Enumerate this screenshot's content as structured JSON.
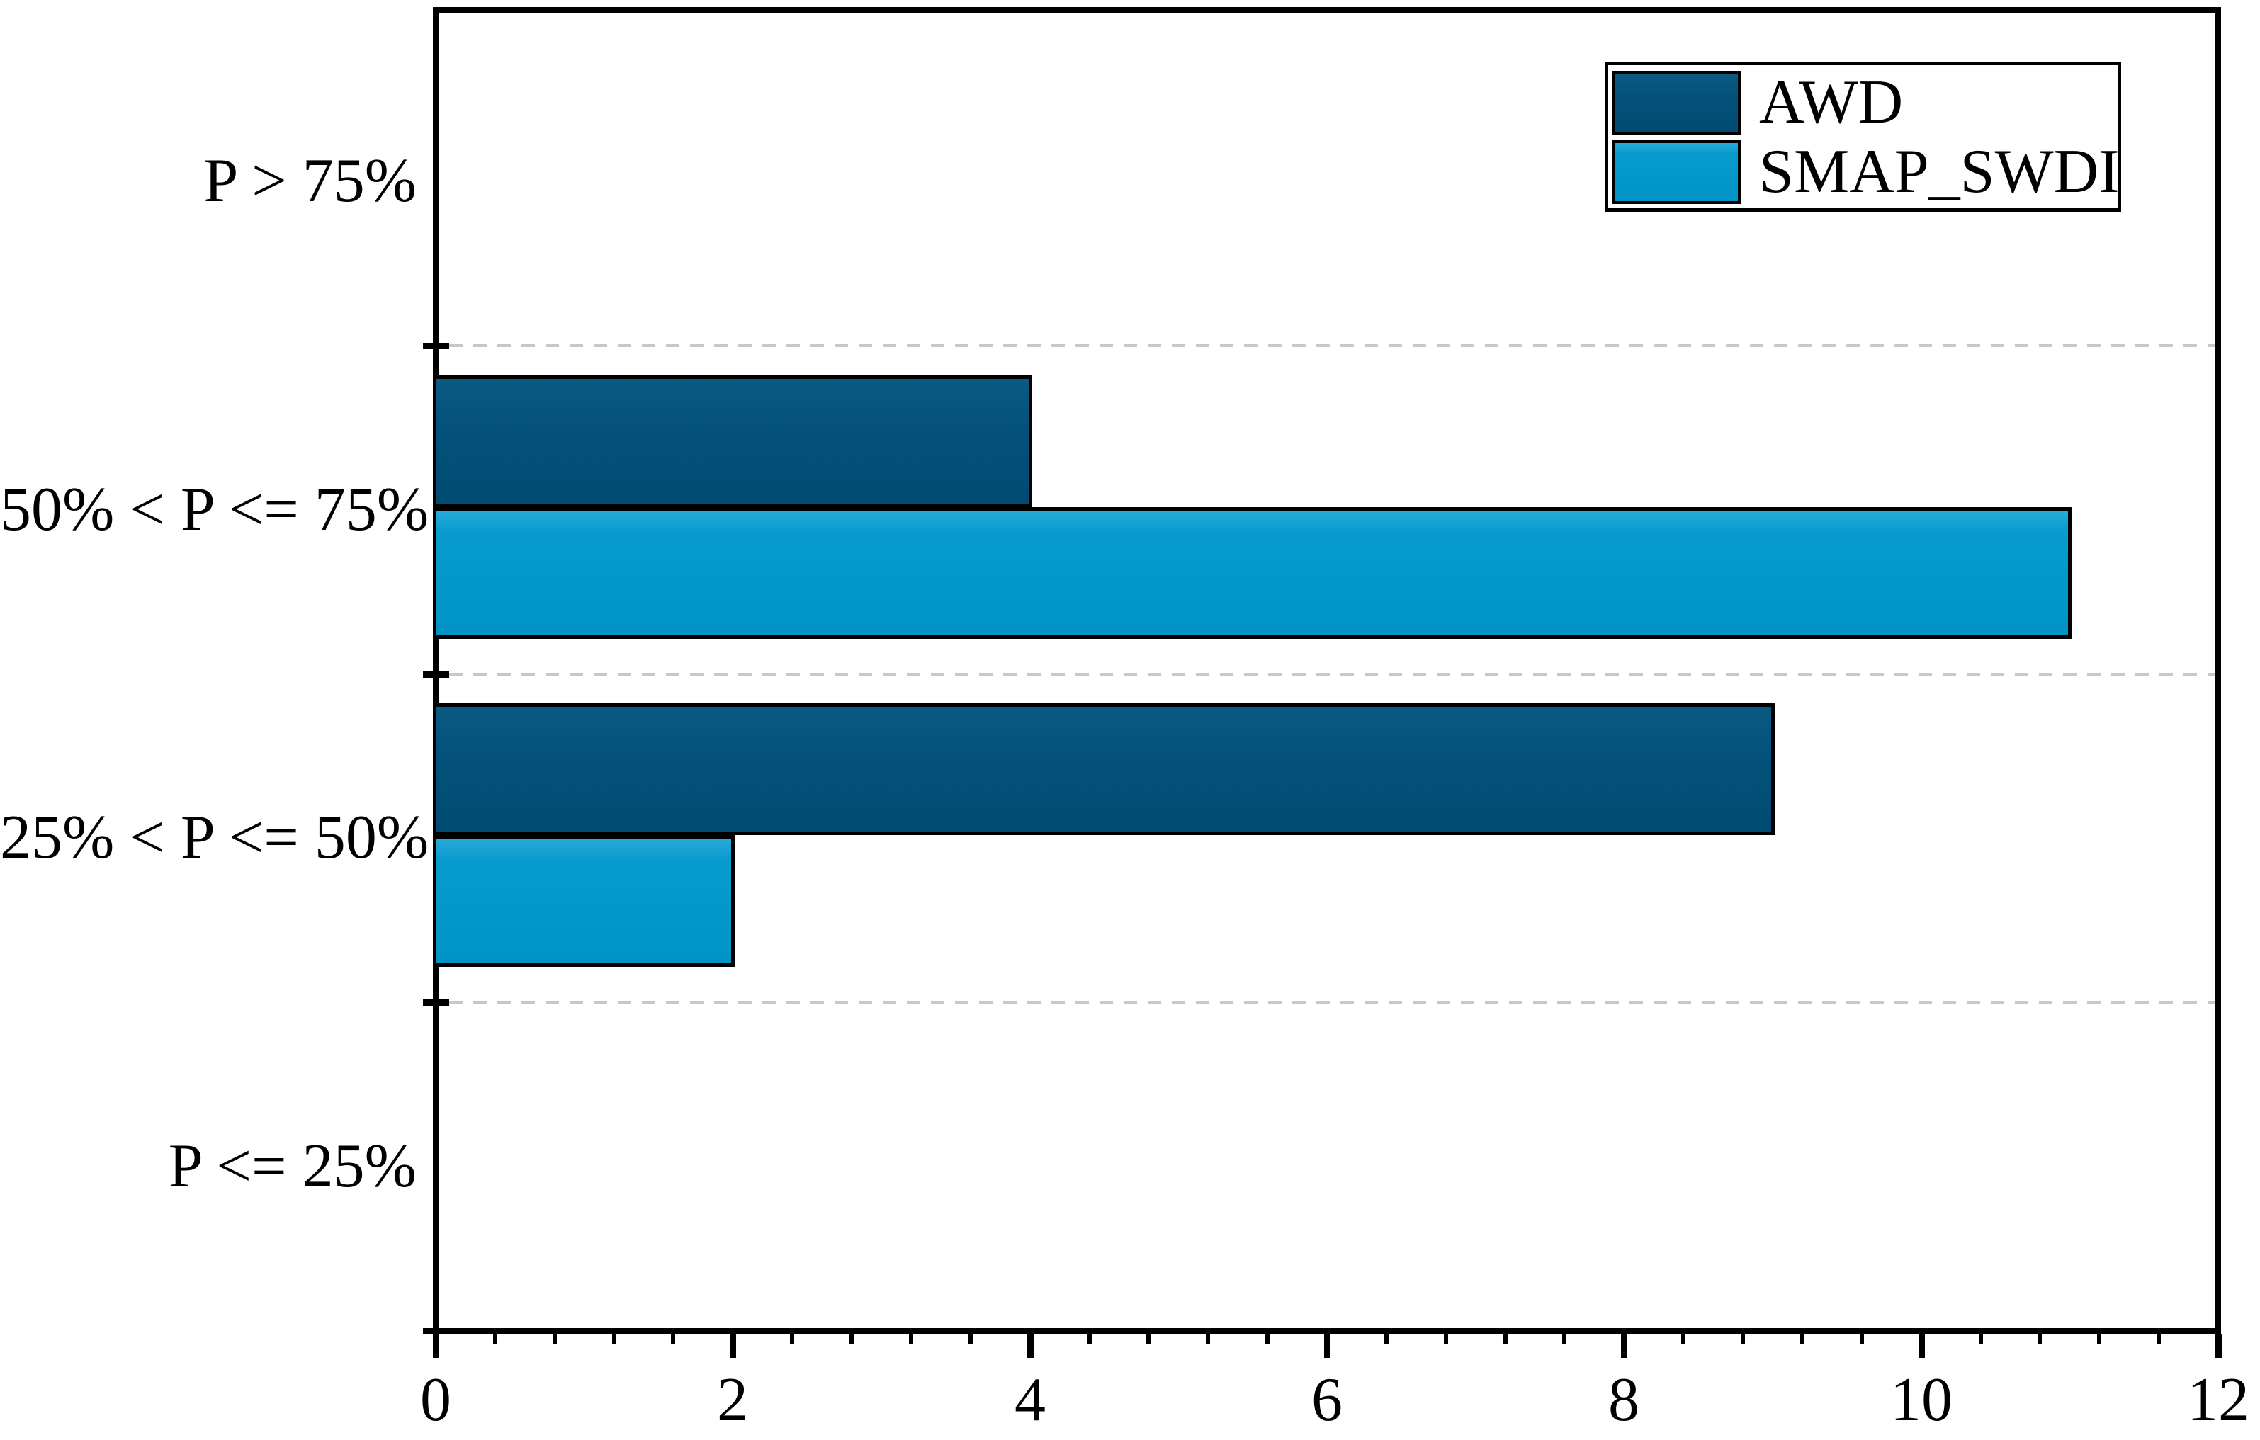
{
  "chart_data": {
    "type": "bar",
    "orientation": "horizontal",
    "title": "",
    "xlabel": "",
    "ylabel": "",
    "categories": [
      "P > 75%",
      "50% < P <= 75%",
      "25% < P <= 50%",
      "P <= 25%"
    ],
    "series": [
      {
        "name": "AWD",
        "values": [
          0,
          4,
          9,
          0
        ],
        "color": "#03517a"
      },
      {
        "name": "SMAP_SWDI",
        "values": [
          0,
          11,
          2,
          0
        ],
        "color": "#0097ca"
      }
    ],
    "xlim": [
      0,
      12
    ],
    "x_major_ticks": [
      0,
      2,
      4,
      6,
      8,
      10,
      12
    ],
    "x_minor_step": 0.4,
    "bar_edge_color": "#000000",
    "grid": "dashed horizontal lines at category boundaries",
    "gridline_color": "#c8c8c8",
    "legend": {
      "position": "top-right",
      "entries": [
        "AWD",
        "SMAP_SWDI"
      ]
    }
  }
}
